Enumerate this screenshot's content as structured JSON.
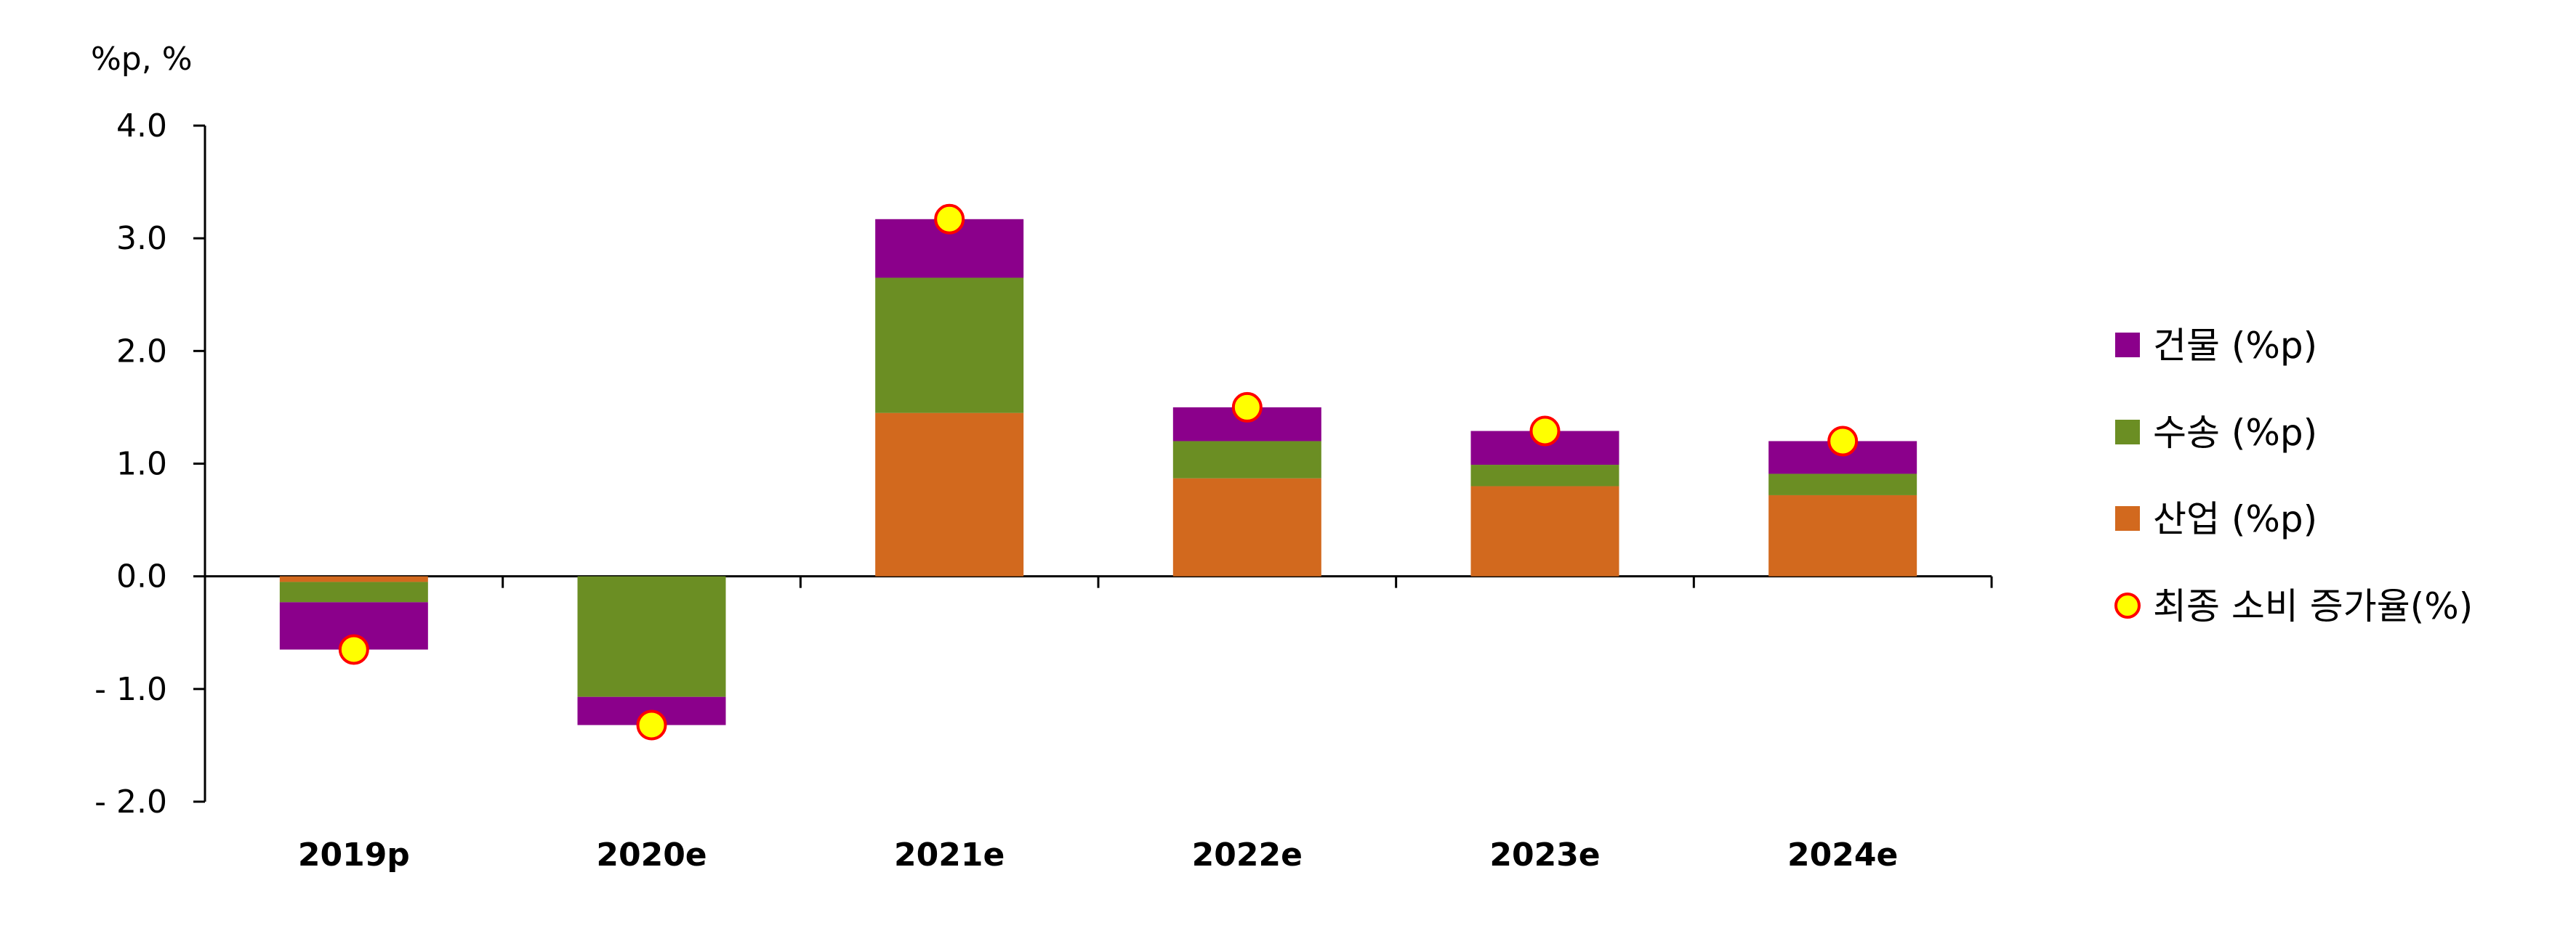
{
  "chart_data": {
    "type": "bar",
    "stacked": true,
    "unit_label": "%p, %",
    "categories": [
      "2019p",
      "2020e",
      "2021e",
      "2022e",
      "2023e",
      "2024e"
    ],
    "series": [
      {
        "name": "산업 (%p)",
        "color": "#d2691e",
        "values": [
          -0.05,
          0.0,
          1.45,
          0.87,
          0.8,
          0.72
        ]
      },
      {
        "name": "수송 (%p)",
        "color": "#6b8e23",
        "values": [
          -0.18,
          -1.07,
          1.2,
          0.33,
          0.19,
          0.19
        ]
      },
      {
        "name": "건물 (%p)",
        "color": "#8b008b",
        "values": [
          -0.42,
          -0.25,
          0.52,
          0.3,
          0.3,
          0.29
        ]
      }
    ],
    "line_series": {
      "name": "최종 소비 증가율(%)",
      "fill": "#ffff00",
      "stroke": "#ff0000",
      "values": [
        -0.65,
        -1.32,
        3.17,
        1.5,
        1.29,
        1.2
      ]
    },
    "y_ticks": [
      "4.0",
      "3.0",
      "2.0",
      "1.0",
      "0.0",
      "- 1.0",
      "- 2.0"
    ],
    "ylim": [
      -2.0,
      4.0
    ],
    "legend_order": [
      2,
      1,
      0,
      "line"
    ],
    "legend_position": "right",
    "grid": false
  }
}
